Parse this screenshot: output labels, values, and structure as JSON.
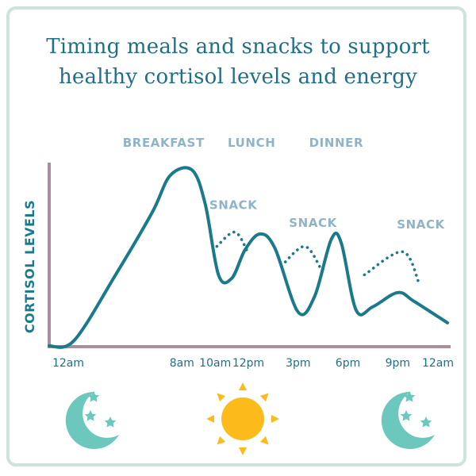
{
  "title_line1": "Timing meals and snacks to support",
  "title_line2": "healthy cortisol levels and energy",
  "chart_data": {
    "type": "line",
    "title": "Timing meals and snacks to support healthy cortisol levels and energy",
    "ylabel": "CORTISOL LEVELS",
    "xlabel": "",
    "x_ticks": [
      "12am",
      "8am",
      "10am",
      "12pm",
      "3pm",
      "6pm",
      "9pm",
      "12am"
    ],
    "x_tick_hours": [
      0,
      8,
      10,
      12,
      15,
      18,
      21,
      24
    ],
    "ylim": [
      0,
      100
    ],
    "series": [
      {
        "name": "Cortisol",
        "style": "solid",
        "points": [
          [
            0,
            0
          ],
          [
            1.5,
            3
          ],
          [
            4,
            40
          ],
          [
            6.2,
            75
          ],
          [
            7.3,
            96
          ],
          [
            8.6,
            99
          ],
          [
            9.4,
            80
          ],
          [
            10.2,
            40
          ],
          [
            11,
            38
          ],
          [
            11.8,
            54
          ],
          [
            12.7,
            63
          ],
          [
            13.6,
            55
          ],
          [
            15,
            19
          ],
          [
            16,
            28
          ],
          [
            17,
            60
          ],
          [
            17.6,
            58
          ],
          [
            18.5,
            20
          ],
          [
            19.5,
            22
          ],
          [
            21,
            30
          ],
          [
            22,
            25
          ],
          [
            24,
            13
          ]
        ]
      },
      {
        "name": "Snack 1",
        "style": "dotted",
        "points": [
          [
            10.1,
            56
          ],
          [
            11.2,
            64
          ],
          [
            12,
            52
          ]
        ]
      },
      {
        "name": "Snack 2",
        "style": "dotted",
        "points": [
          [
            14,
            45
          ],
          [
            15.4,
            56
          ],
          [
            16.4,
            43
          ]
        ]
      },
      {
        "name": "Snack 3",
        "style": "dotted",
        "points": [
          [
            19,
            40
          ],
          [
            21.3,
            53
          ],
          [
            22.3,
            35
          ]
        ]
      }
    ],
    "annotations": [
      {
        "text": "BREAKFAST",
        "x": 6.9,
        "y": 112
      },
      {
        "text": "LUNCH",
        "x": 12.2,
        "y": 112
      },
      {
        "text": "DINNER",
        "x": 17.3,
        "y": 112
      },
      {
        "text": "SNACK",
        "x": 11.1,
        "y": 77
      },
      {
        "text": "SNACK",
        "x": 15.9,
        "y": 67
      },
      {
        "text": "SNACK",
        "x": 22.4,
        "y": 66
      }
    ]
  },
  "colors": {
    "curve": "#1a7a8c",
    "axis": "#a98f9e",
    "label": "#8fb4c7",
    "title": "#1f6f86",
    "ytitle": "#1a7a8c",
    "moon": "#6cc7bc",
    "sun": "#fcbb1b"
  },
  "icons": {
    "left": "moon-stars-icon",
    "middle": "sun-icon",
    "right": "moon-stars-icon"
  }
}
